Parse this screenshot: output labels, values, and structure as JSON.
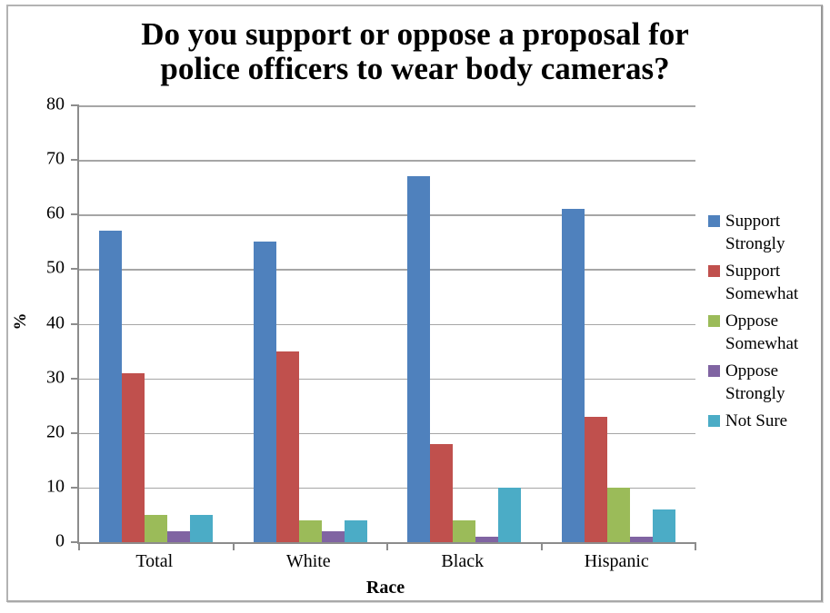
{
  "chart_data": {
    "type": "bar",
    "title": "Do you support or oppose a proposal for police officers to wear body cameras?",
    "title_lines": [
      "Do you support or oppose a proposal for",
      "police officers to wear body cameras?"
    ],
    "xlabel": "Race",
    "ylabel": "%",
    "ylim": [
      0,
      80
    ],
    "ytick_step": 10,
    "grid": true,
    "legend_position": "right",
    "categories": [
      "Total",
      "White",
      "Black",
      "Hispanic"
    ],
    "series": [
      {
        "name": "Support Strongly",
        "color": "#4F81BD",
        "values": [
          57,
          55,
          67,
          61
        ]
      },
      {
        "name": "Support Somewhat",
        "color": "#C0504D",
        "values": [
          31,
          35,
          18,
          23
        ]
      },
      {
        "name": "Oppose Somewhat",
        "color": "#9BBB59",
        "values": [
          5,
          4,
          4,
          10
        ]
      },
      {
        "name": "Oppose Strongly",
        "color": "#8064A2",
        "values": [
          2,
          2,
          1,
          1
        ]
      },
      {
        "name": "Not Sure",
        "color": "#4BACC6",
        "values": [
          5,
          4,
          10,
          6
        ]
      }
    ],
    "axis_color": "#8C8C8C",
    "gridline_color": "#A6A6A6",
    "frame_border_color": "#B3B3B3"
  }
}
